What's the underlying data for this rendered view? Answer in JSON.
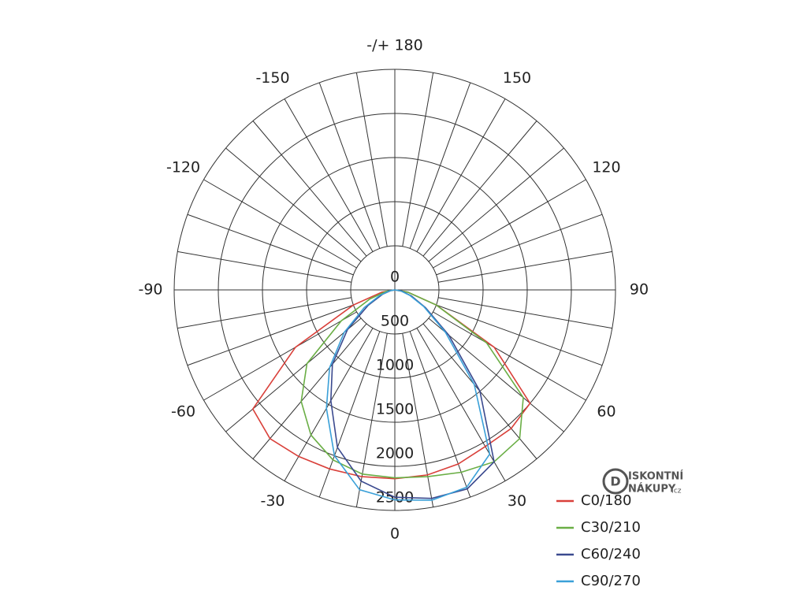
{
  "chart_data": {
    "type": "polar",
    "theta": [
      -90,
      -80,
      -70,
      -60,
      -50,
      -40,
      -30,
      -20,
      -10,
      0,
      10,
      20,
      30,
      40,
      50,
      60,
      70,
      80,
      90
    ],
    "series": [
      {
        "name": "C0/180",
        "color": "#d9403a",
        "values": [
          0,
          150,
          500,
          1300,
          2100,
          2200,
          2180,
          2160,
          2150,
          2140,
          2130,
          2100,
          2050,
          2050,
          2000,
          1300,
          500,
          150,
          0
        ]
      },
      {
        "name": "C30/210",
        "color": "#6aae45",
        "values": [
          0,
          100,
          300,
          700,
          1300,
          1650,
          1900,
          2050,
          2120,
          2130,
          2150,
          2200,
          2250,
          2200,
          1900,
          1200,
          500,
          150,
          0
        ]
      },
      {
        "name": "C60/240",
        "color": "#3b4a8f",
        "values": [
          0,
          50,
          150,
          350,
          700,
          1100,
          1450,
          1900,
          2200,
          2350,
          2400,
          2400,
          2250,
          1500,
          800,
          400,
          200,
          80,
          0
        ]
      },
      {
        "name": "C90/270",
        "color": "#3aa0d8",
        "values": [
          0,
          60,
          180,
          400,
          750,
          1150,
          1550,
          2000,
          2300,
          2380,
          2420,
          2380,
          2150,
          1400,
          750,
          380,
          180,
          70,
          0
        ]
      }
    ],
    "rlim": [
      0,
      2500
    ],
    "rticks": [
      0,
      500,
      1000,
      1500,
      2000,
      2500
    ],
    "angleticks": [
      -150,
      -120,
      -90,
      -60,
      -30,
      0,
      30,
      60,
      90,
      120,
      150,
      {
        "value": 180,
        "label": "-/+ 180"
      }
    ],
    "watermark": [
      "ISKONTNÍ",
      "NÁKUPY",
      ".cz"
    ]
  }
}
